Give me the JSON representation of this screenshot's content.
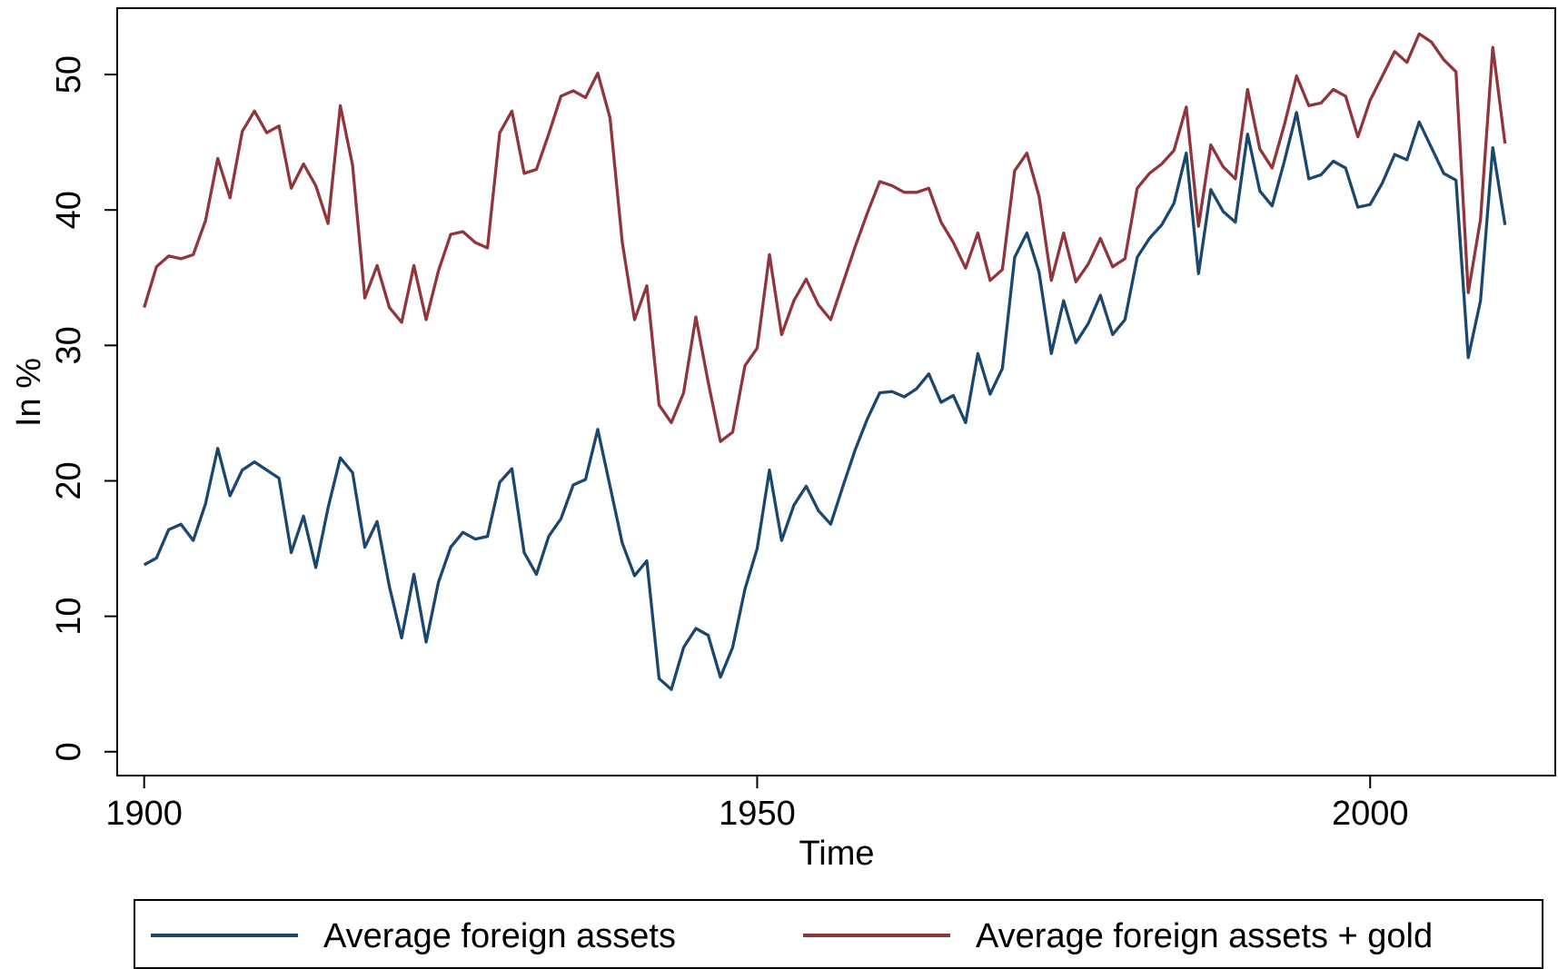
{
  "chart_data": {
    "type": "line",
    "x_label": "Time",
    "y_label": "In %",
    "x": [
      1900,
      1901,
      1902,
      1903,
      1904,
      1905,
      1906,
      1907,
      1908,
      1909,
      1910,
      1911,
      1912,
      1913,
      1914,
      1915,
      1916,
      1917,
      1918,
      1919,
      1920,
      1921,
      1922,
      1923,
      1924,
      1925,
      1926,
      1927,
      1928,
      1929,
      1930,
      1931,
      1932,
      1933,
      1934,
      1935,
      1936,
      1937,
      1938,
      1939,
      1940,
      1941,
      1942,
      1943,
      1944,
      1945,
      1946,
      1947,
      1948,
      1949,
      1950,
      1951,
      1952,
      1953,
      1954,
      1955,
      1956,
      1957,
      1958,
      1959,
      1960,
      1961,
      1962,
      1963,
      1964,
      1965,
      1966,
      1967,
      1968,
      1969,
      1970,
      1971,
      1972,
      1973,
      1974,
      1975,
      1976,
      1977,
      1978,
      1979,
      1980,
      1981,
      1982,
      1983,
      1984,
      1985,
      1986,
      1987,
      1988,
      1989,
      1990,
      1991,
      1992,
      1993,
      1994,
      1995,
      1996,
      1997,
      1998,
      1999,
      2000,
      2001,
      2002,
      2003,
      2004,
      2005,
      2006,
      2007,
      2008,
      2009,
      2010,
      2011
    ],
    "series": [
      {
        "name": "Average foreign assets",
        "color": "#1a476f",
        "values": [
          13.8,
          14.3,
          16.4,
          16.8,
          15.6,
          18.3,
          22.4,
          18.9,
          20.8,
          21.4,
          20.8,
          20.2,
          14.7,
          17.4,
          13.6,
          18,
          21.7,
          20.6,
          15.1,
          17,
          12.2,
          8.4,
          13.1,
          8.1,
          12.5,
          15.1,
          16.2,
          15.7,
          15.9,
          19.9,
          20.9,
          14.7,
          13.1,
          15.9,
          17.2,
          19.7,
          20.1,
          23.8,
          19.6,
          15.4,
          13,
          14.1,
          5.4,
          4.6,
          7.7,
          9.1,
          8.6,
          5.5,
          7.7,
          12,
          15,
          20.8,
          15.6,
          18.2,
          19.6,
          17.8,
          16.8,
          19.6,
          22.3,
          24.6,
          26.5,
          26.6,
          26.2,
          26.8,
          27.9,
          25.8,
          26.3,
          24.3,
          29.4,
          26.4,
          28.3,
          36.5,
          38.3,
          35.4,
          29.4,
          33.3,
          30.2,
          31.6,
          33.7,
          30.8,
          31.9,
          36.5,
          37.9,
          38.9,
          40.5,
          44.2,
          35.3,
          41.5,
          39.9,
          39.1,
          45.6,
          41.4,
          40.3,
          43.6,
          47.2,
          42.3,
          42.6,
          43.6,
          43.1,
          40.2,
          40.4,
          42,
          44.1,
          43.7,
          46.5,
          44.6,
          42.7,
          42.2,
          29.1,
          33.3,
          44.6,
          38.9
        ]
      },
      {
        "name": "Average foreign assets + gold",
        "color": "#90353b",
        "values": [
          32.8,
          35.8,
          36.6,
          36.4,
          36.7,
          39.2,
          43.8,
          40.9,
          45.8,
          47.3,
          45.7,
          46.2,
          41.6,
          43.4,
          41.8,
          39,
          47.7,
          43.3,
          33.5,
          35.9,
          32.8,
          31.7,
          35.9,
          31.9,
          35.5,
          38.2,
          38.4,
          37.6,
          37.2,
          45.7,
          47.3,
          42.7,
          43,
          45.6,
          48.4,
          48.8,
          48.3,
          50.1,
          46.8,
          37.6,
          31.9,
          34.4,
          25.6,
          24.3,
          26.5,
          32.1,
          27.3,
          22.9,
          23.6,
          28.5,
          29.8,
          36.7,
          30.8,
          33.3,
          34.9,
          33,
          31.9,
          34.6,
          37.3,
          39.8,
          42.1,
          41.8,
          41.3,
          41.3,
          41.6,
          39.1,
          37.6,
          35.7,
          38.3,
          34.8,
          35.6,
          42.9,
          44.2,
          41,
          34.8,
          38.3,
          34.7,
          36,
          37.9,
          35.8,
          36.4,
          41.6,
          42.7,
          43.4,
          44.4,
          47.6,
          38.8,
          44.8,
          43.2,
          42.3,
          48.9,
          44.5,
          43.1,
          46.3,
          49.9,
          47.7,
          47.9,
          48.9,
          48.4,
          45.4,
          48.1,
          49.9,
          51.7,
          50.9,
          53,
          52.4,
          51.1,
          50.2,
          33.9,
          39.3,
          52,
          44.9
        ]
      }
    ],
    "xlim": [
      1897.8,
      2015.1
    ],
    "xticks": [
      1900,
      1950,
      2000
    ],
    "ylim": [
      -1.76,
      54.9
    ],
    "yticks": [
      0,
      10,
      20,
      30,
      40,
      50
    ],
    "grid": false,
    "legend": "bottom"
  }
}
